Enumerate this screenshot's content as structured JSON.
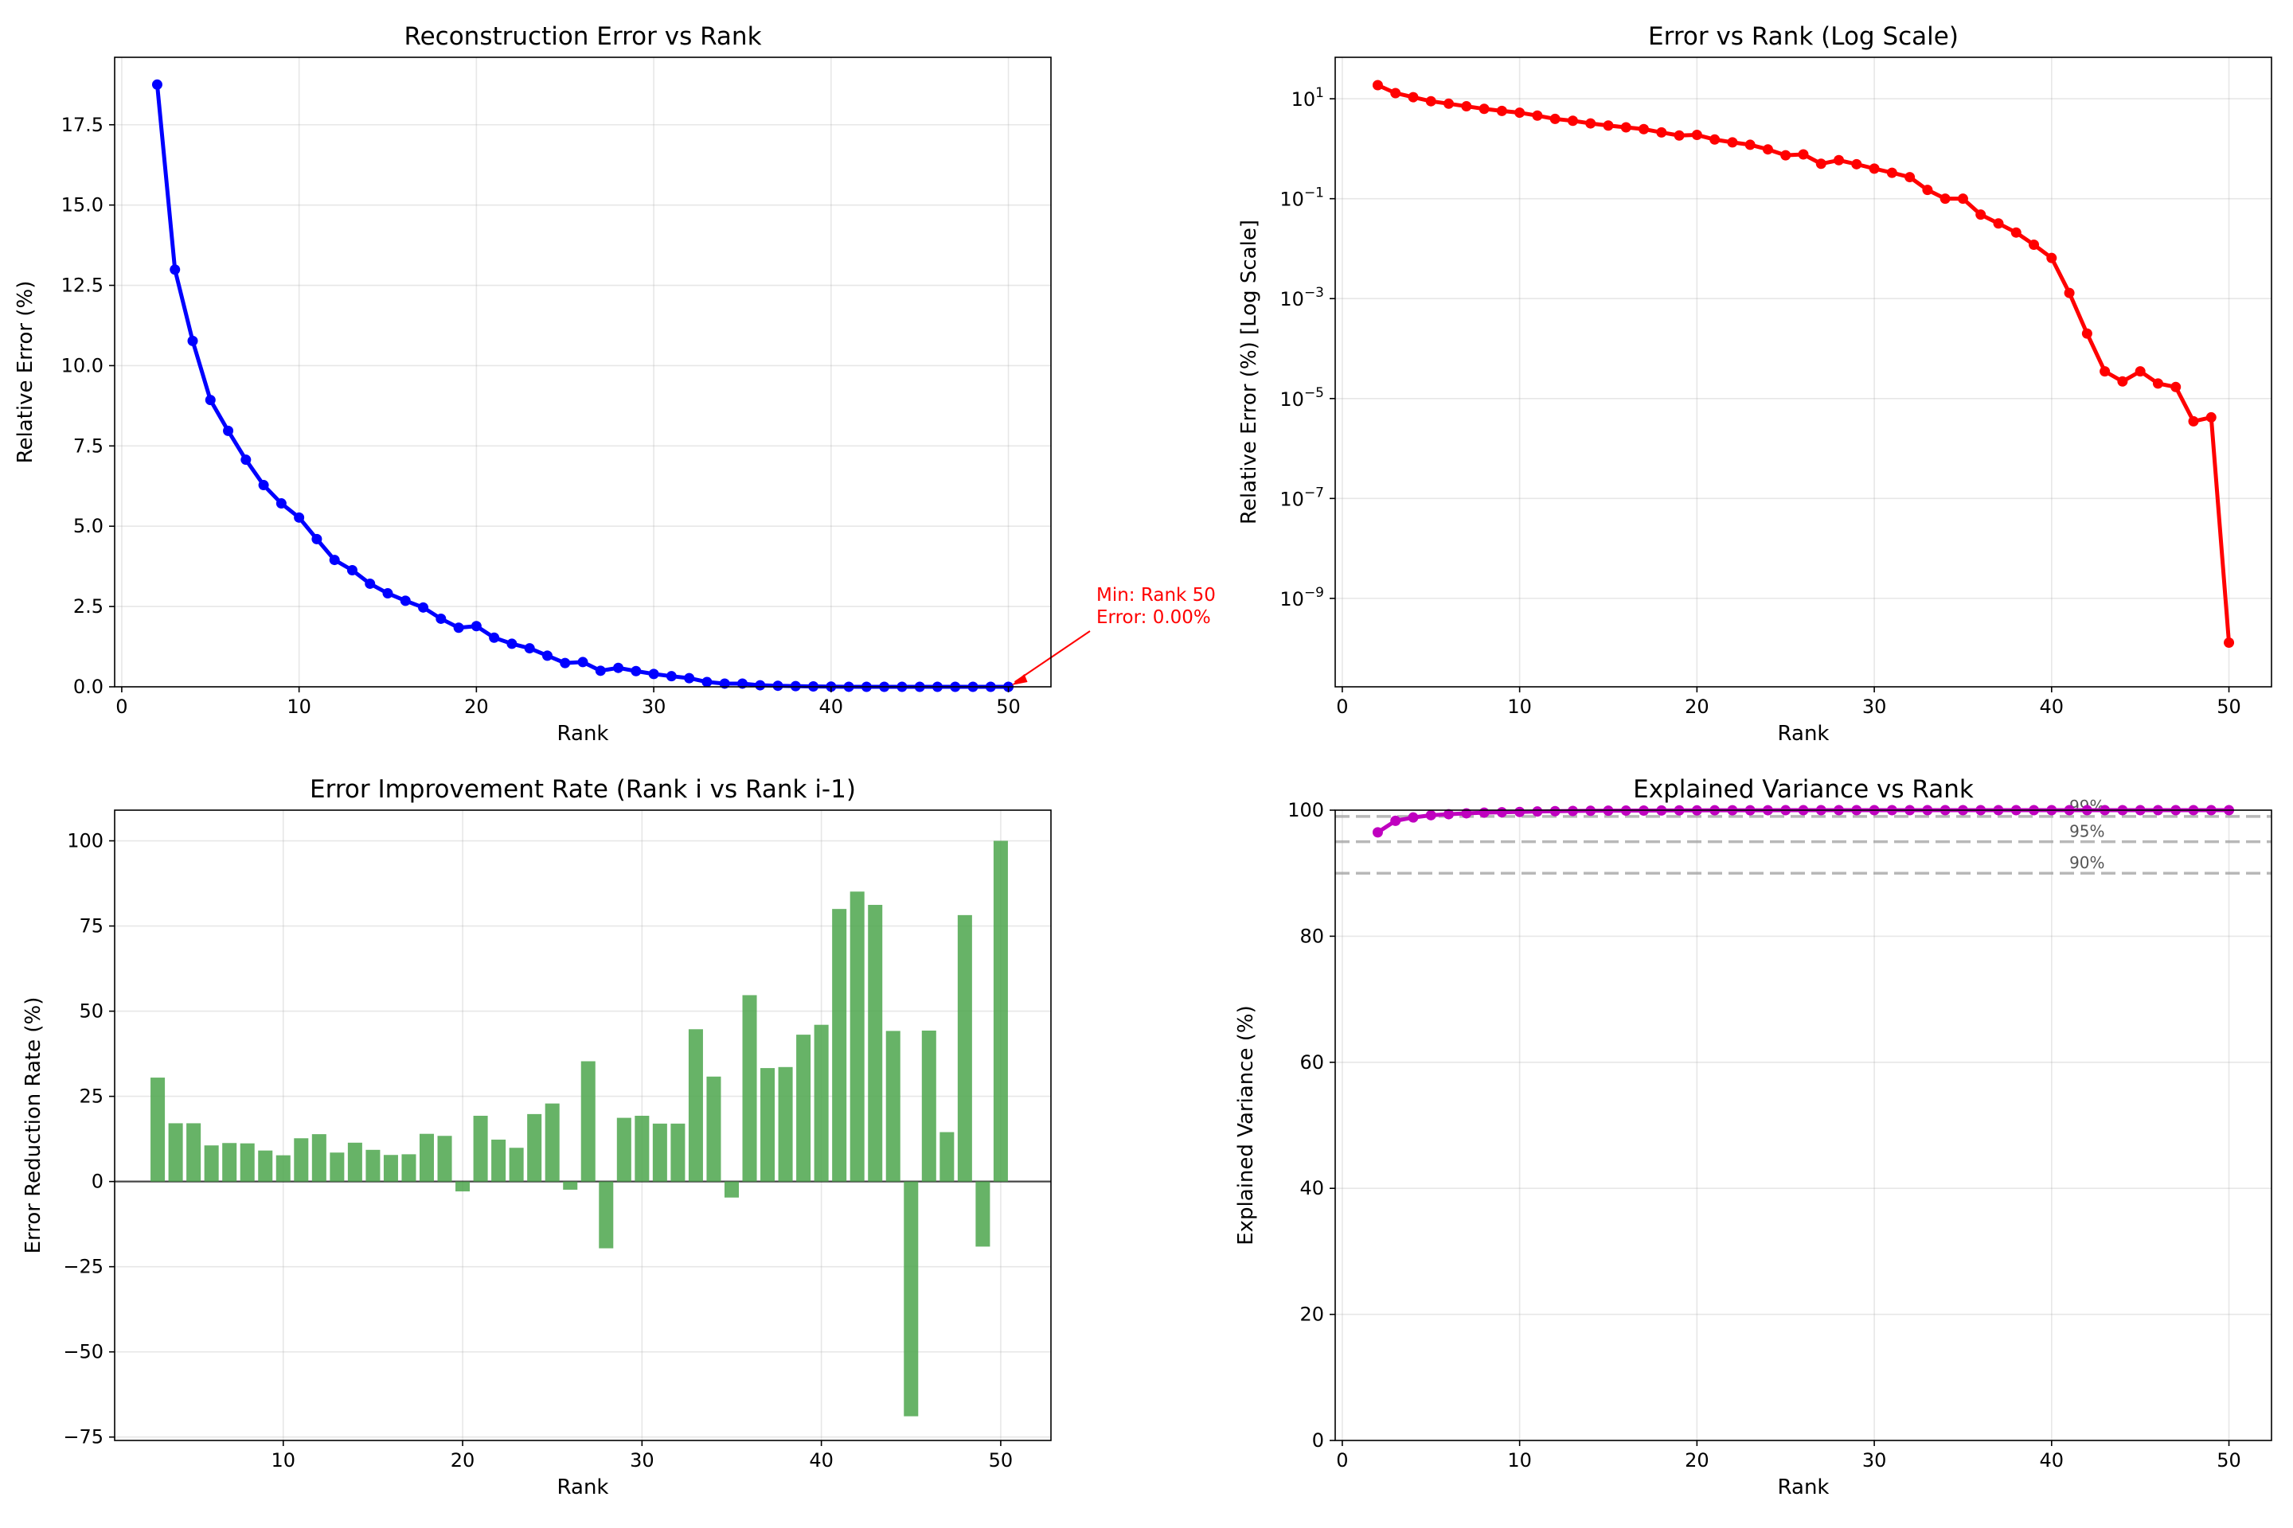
{
  "chart_data": [
    {
      "type": "line",
      "title": "Reconstruction Error vs Rank",
      "xlabel": "Rank",
      "ylabel": "Relative Error (%)",
      "xlim": [
        -0.4,
        52.4
      ],
      "ylim": [
        0,
        19.6
      ],
      "xticks": [
        0,
        10,
        20,
        30,
        40,
        50
      ],
      "yticks": [
        0.0,
        2.5,
        5.0,
        7.5,
        10.0,
        12.5,
        15.0,
        17.5
      ],
      "ytick_labels": [
        "0.0",
        "2.5",
        "5.0",
        "7.5",
        "10.0",
        "12.5",
        "15.0",
        "17.5"
      ],
      "grid": true,
      "color": "#0000ff",
      "x": [
        2,
        3,
        4,
        5,
        6,
        7,
        8,
        9,
        10,
        11,
        12,
        13,
        14,
        15,
        16,
        17,
        18,
        19,
        20,
        21,
        22,
        23,
        24,
        25,
        26,
        27,
        28,
        29,
        30,
        31,
        32,
        33,
        34,
        35,
        36,
        37,
        38,
        39,
        40,
        41,
        42,
        43,
        44,
        45,
        46,
        47,
        48,
        49,
        50
      ],
      "values": [
        18.75,
        12.99,
        10.77,
        8.93,
        7.97,
        7.07,
        6.28,
        5.71,
        5.27,
        4.6,
        3.95,
        3.63,
        3.21,
        2.91,
        2.68,
        2.47,
        2.12,
        1.84,
        1.89,
        1.53,
        1.34,
        1.2,
        0.97,
        0.74,
        0.77,
        0.5,
        0.59,
        0.49,
        0.4,
        0.33,
        0.27,
        0.15,
        0.1,
        0.1,
        0.048,
        0.032,
        0.021,
        0.012,
        0.0065,
        0.0013,
        0.0002,
        3.5e-05,
        2.2e-05,
        3.5e-05,
        2e-05,
        1.7e-05,
        3.5e-06,
        4.2e-06,
        1.3e-10
      ],
      "annotation": {
        "lines": [
          "Min: Rank 50",
          "Error: 0.00%"
        ],
        "x": 50,
        "y": 0.0,
        "color": "#ff0000"
      }
    },
    {
      "type": "line",
      "title": "Error vs Rank (Log Scale)",
      "xlabel": "Rank",
      "ylabel": "Relative Error (%) [Log Scale]",
      "yscale": "log",
      "xlim": [
        -0.4,
        52.4
      ],
      "ylim_log10": [
        -10.77,
        1.83
      ],
      "xticks": [
        0,
        10,
        20,
        30,
        40,
        50
      ],
      "yticks_log10": [
        1,
        -1,
        -3,
        -5,
        -7,
        -9
      ],
      "ytick_labels": [
        "10",
        "10",
        "10",
        "10",
        "10",
        "10"
      ],
      "ytick_exponents": [
        "1",
        "−1",
        "−3",
        "−5",
        "−7",
        "−9"
      ],
      "grid": true,
      "color": "#ff0000",
      "x": [
        2,
        3,
        4,
        5,
        6,
        7,
        8,
        9,
        10,
        11,
        12,
        13,
        14,
        15,
        16,
        17,
        18,
        19,
        20,
        21,
        22,
        23,
        24,
        25,
        26,
        27,
        28,
        29,
        30,
        31,
        32,
        33,
        34,
        35,
        36,
        37,
        38,
        39,
        40,
        41,
        42,
        43,
        44,
        45,
        46,
        47,
        48,
        49,
        50
      ],
      "values": [
        18.75,
        12.99,
        10.77,
        8.93,
        7.97,
        7.07,
        6.28,
        5.71,
        5.27,
        4.6,
        3.95,
        3.63,
        3.21,
        2.91,
        2.68,
        2.47,
        2.12,
        1.84,
        1.89,
        1.53,
        1.34,
        1.2,
        0.97,
        0.74,
        0.77,
        0.5,
        0.59,
        0.49,
        0.4,
        0.33,
        0.27,
        0.15,
        0.1,
        0.1,
        0.048,
        0.032,
        0.021,
        0.012,
        0.0065,
        0.0013,
        0.0002,
        3.5e-05,
        2.2e-05,
        3.5e-05,
        2e-05,
        1.7e-05,
        3.5e-06,
        4.2e-06,
        1.3e-10
      ]
    },
    {
      "type": "bar",
      "title": "Error Improvement Rate (Rank i vs Rank i-1)",
      "xlabel": "Rank",
      "ylabel": "Error Reduction Rate (%)",
      "xlim": [
        0.6,
        52.8
      ],
      "ylim": [
        -76,
        109
      ],
      "xticks": [
        10,
        20,
        30,
        40,
        50
      ],
      "yticks": [
        -75,
        -50,
        -25,
        0,
        25,
        50,
        75,
        100
      ],
      "ytick_labels": [
        "−75",
        "−50",
        "−25",
        "0",
        "25",
        "50",
        "75",
        "100"
      ],
      "grid": true,
      "color": "#4ca64c",
      "x": [
        3,
        4,
        5,
        6,
        7,
        8,
        9,
        10,
        11,
        12,
        13,
        14,
        15,
        16,
        17,
        18,
        19,
        20,
        21,
        22,
        23,
        24,
        25,
        26,
        27,
        28,
        29,
        30,
        31,
        32,
        33,
        34,
        35,
        36,
        37,
        38,
        39,
        40,
        41,
        42,
        43,
        44,
        45,
        46,
        47,
        48,
        49,
        50
      ],
      "values": [
        30.5,
        17.1,
        17.1,
        10.6,
        11.3,
        11.2,
        9.1,
        7.7,
        12.7,
        13.9,
        8.5,
        11.4,
        9.3,
        7.8,
        8.0,
        14.0,
        13.4,
        -2.9,
        19.3,
        12.3,
        9.9,
        19.8,
        22.9,
        -2.4,
        35.3,
        -19.6,
        18.7,
        19.3,
        17.0,
        17.0,
        44.7,
        30.8,
        -4.7,
        54.7,
        33.3,
        33.6,
        43.1,
        46.0,
        80.0,
        85.1,
        81.2,
        44.2,
        -68.9,
        44.3,
        14.5,
        78.2,
        -19.1,
        100.0
      ]
    },
    {
      "type": "line",
      "title": "Explained Variance vs Rank",
      "xlabel": "Rank",
      "ylabel": "Explained Variance (%)",
      "xlim": [
        -0.4,
        52.4
      ],
      "ylim": [
        0,
        100
      ],
      "xticks": [
        0,
        10,
        20,
        30,
        40,
        50
      ],
      "yticks": [
        0,
        20,
        40,
        60,
        80,
        100
      ],
      "ytick_labels": [
        "0",
        "20",
        "40",
        "60",
        "80",
        "100"
      ],
      "grid": true,
      "color": "#bf00bf",
      "x": [
        2,
        3,
        4,
        5,
        6,
        7,
        8,
        9,
        10,
        11,
        12,
        13,
        14,
        15,
        16,
        17,
        18,
        19,
        20,
        21,
        22,
        23,
        24,
        25,
        26,
        27,
        28,
        29,
        30,
        31,
        32,
        33,
        34,
        35,
        36,
        37,
        38,
        39,
        40,
        41,
        42,
        43,
        44,
        45,
        46,
        47,
        48,
        49,
        50
      ],
      "values": [
        96.48,
        98.31,
        98.84,
        99.2,
        99.36,
        99.5,
        99.61,
        99.67,
        99.72,
        99.79,
        99.84,
        99.87,
        99.9,
        99.92,
        99.93,
        99.94,
        99.955,
        99.966,
        99.964,
        99.977,
        99.982,
        99.986,
        99.991,
        99.995,
        99.994,
        99.9975,
        99.9965,
        99.9976,
        99.9984,
        99.9989,
        99.9993,
        99.9998,
        99.9999,
        99.9999,
        100,
        100,
        100,
        100,
        100,
        100,
        100,
        100,
        100,
        100,
        100,
        100,
        100,
        100,
        100
      ],
      "reference_lines": [
        {
          "y": 99,
          "label": "99%"
        },
        {
          "y": 95,
          "label": "95%"
        },
        {
          "y": 90,
          "label": "90%"
        }
      ],
      "reference_color": "#a0a0a0"
    }
  ]
}
